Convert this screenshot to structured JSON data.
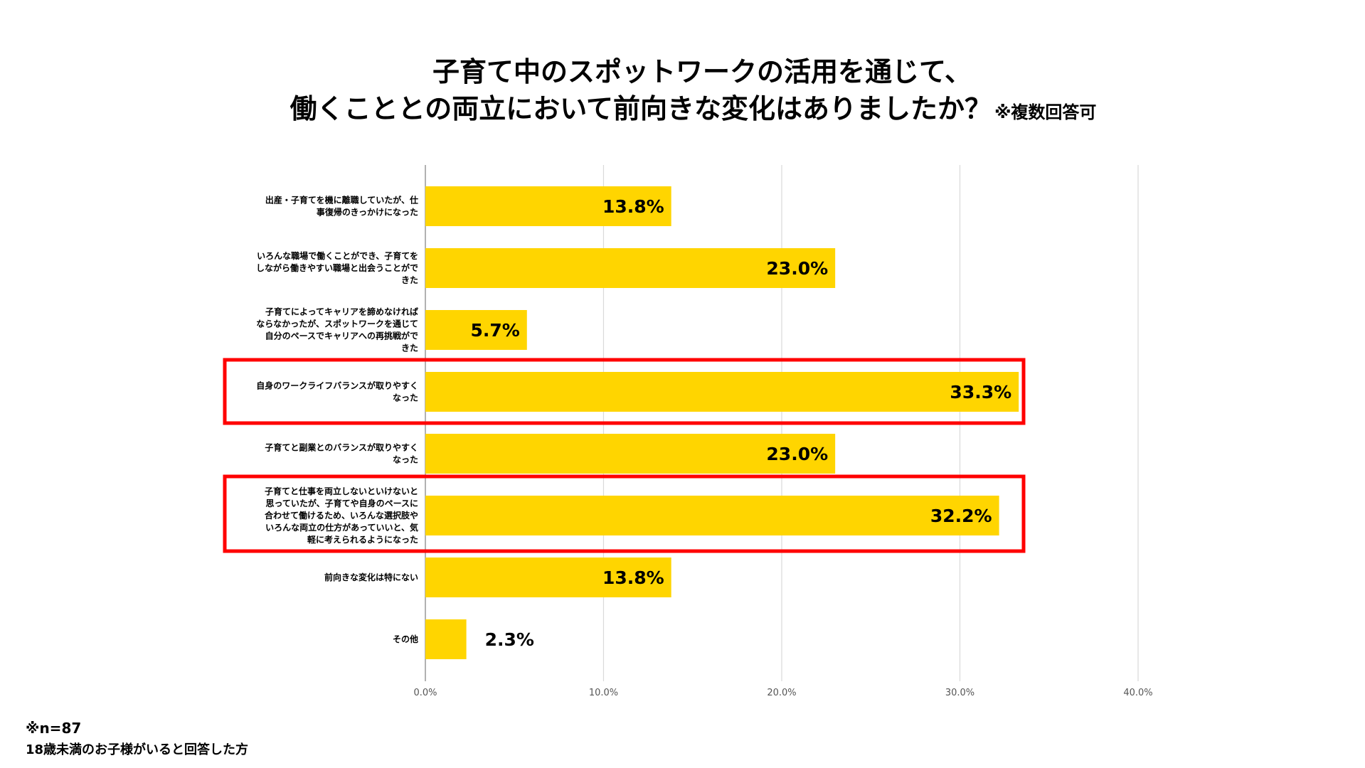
{
  "title": {
    "line1": "子育て中のスポットワークの活用を通じて、",
    "line2": "働くこととの両立において前向きな変化はありましたか？",
    "note": "※複数回答可"
  },
  "footnote": {
    "n": "※n=87",
    "desc": "18歳未満のお子様がいると回答した方"
  },
  "colors": {
    "bar": "#FFD500",
    "highlight": "#FF0000",
    "grid": "#D9D9D9",
    "axis": "#9E9E9E"
  },
  "chart_data": {
    "type": "bar",
    "orientation": "horizontal",
    "title": "子育て中のスポットワークの活用を通じて、働くこととの両立において前向きな変化はありましたか？",
    "xlim": [
      0,
      40
    ],
    "grid": true,
    "ticks": [
      "0.0%",
      "10.0%",
      "20.0%",
      "30.0%",
      "40.0%"
    ],
    "categories": [
      [
        "出産・子育てを機に離職していたが、仕",
        "事復帰のきっかけになった"
      ],
      [
        "いろんな職場で働くことができ、子育てを",
        "しながら働きやすい職場と出会うことがで",
        "きた"
      ],
      [
        "子育てによってキャリアを諦めなければ",
        "ならなかったが、スポットワークを通じて",
        "自分のペースでキャリアへの再挑戦がで",
        "きた"
      ],
      [
        "自身のワークライフバランスが取りやすく",
        "なった"
      ],
      [
        "子育てと副業とのバランスが取りやすく",
        "なった"
      ],
      [
        "子育てと仕事を両立しないといけないと",
        "思っていたが、子育てや自身のペースに",
        "合わせて働けるため、いろんな選択肢や",
        "いろんな両立の仕方があっていいと、気",
        "軽に考えられるようになった"
      ],
      [
        "前向きな変化は特にない"
      ],
      [
        "その他"
      ]
    ],
    "values": [
      13.8,
      23.0,
      5.7,
      33.3,
      23.0,
      32.2,
      13.8,
      2.3
    ],
    "value_labels": [
      "13.8%",
      "23.0%",
      "5.7%",
      "33.3%",
      "23.0%",
      "32.2%",
      "13.8%",
      "2.3%"
    ],
    "highlighted": [
      3,
      5
    ]
  }
}
